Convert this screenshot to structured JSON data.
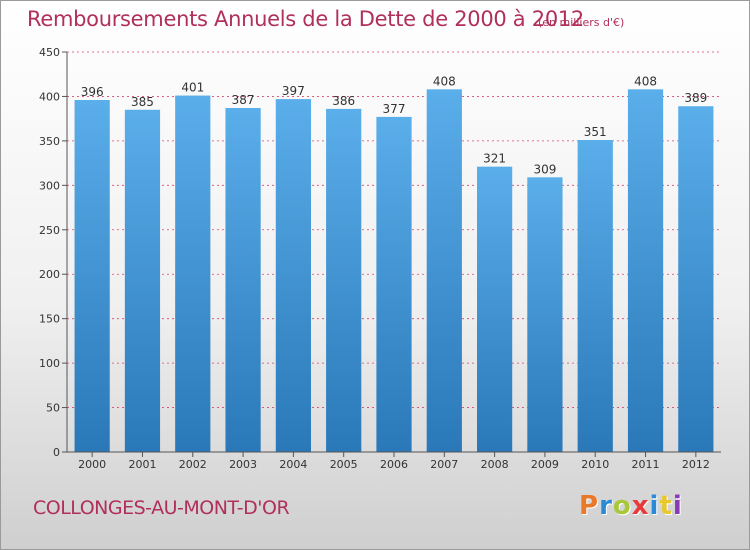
{
  "chart_data": {
    "type": "bar",
    "title": "Remboursements Annuels de la Dette de 2000 à 2012",
    "subtitle": "(en milliers d'€)",
    "xlabel": "",
    "ylabel": "",
    "categories": [
      "2000",
      "2001",
      "2002",
      "2003",
      "2004",
      "2005",
      "2006",
      "2007",
      "2008",
      "2009",
      "2010",
      "2011",
      "2012"
    ],
    "values": [
      396,
      385,
      401,
      387,
      397,
      386,
      377,
      408,
      321,
      309,
      351,
      408,
      389
    ],
    "ylim": [
      0,
      450
    ],
    "yticks": [
      0,
      50,
      100,
      150,
      200,
      250,
      300,
      350,
      400,
      450
    ],
    "grid": true,
    "legend": "none",
    "colors": {
      "bar_light": "#5aaeea",
      "bar_dark": "#2a78b8",
      "grid": "#d24a6a",
      "axis": "#555555"
    }
  },
  "footer": {
    "city": "COLLONGES-AU-MONT-D'OR",
    "logo": "Proxiti",
    "logo_colors": [
      "#e8782a",
      "#2a8ad8",
      "#a8c83a",
      "#e83a3a",
      "#2a8ad8",
      "#e8c82a",
      "#8a3ab8"
    ]
  }
}
